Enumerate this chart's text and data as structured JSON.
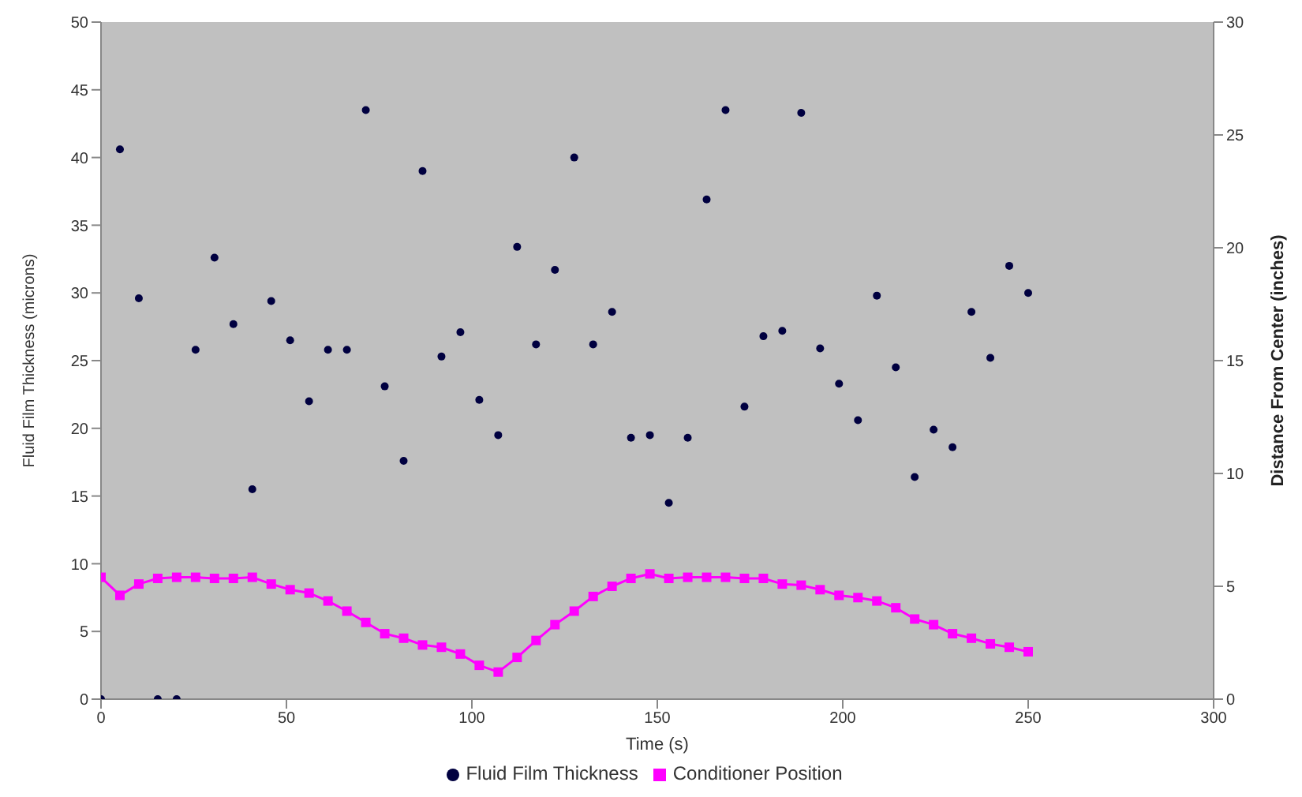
{
  "chart_data": {
    "type": "scatter",
    "xlabel": "Time (s)",
    "ylabel": "Fluid Film Thickness (microns)",
    "y2label": "Distance From Center (inches)",
    "x": [
      0,
      5.1,
      10.2,
      15.3,
      20.4,
      25.5,
      30.6,
      35.7,
      40.8,
      45.9,
      51,
      56.1,
      61.2,
      66.3,
      71.4,
      76.5,
      81.6,
      86.7,
      91.8,
      96.9,
      102,
      107.1,
      112.2,
      117.3,
      122.4,
      127.6,
      132.7,
      137.8,
      142.9,
      148,
      153.1,
      158.2,
      163.3,
      168.4,
      173.5,
      178.6,
      183.7,
      188.8,
      193.9,
      199,
      204.1,
      209.2,
      214.3,
      219.4,
      224.5,
      229.6,
      234.7,
      239.8,
      244.9,
      250
    ],
    "series": [
      {
        "name": "Fluid Film Thickness",
        "marker": "circle",
        "color": "#000040",
        "values": [
          0,
          40.6,
          29.6,
          0,
          0,
          25.8,
          32.6,
          27.7,
          15.5,
          29.4,
          26.5,
          22,
          25.8,
          25.8,
          43.5,
          23.1,
          17.6,
          39,
          25.3,
          27.1,
          22.1,
          19.5,
          33.4,
          26.2,
          31.7,
          40,
          26.2,
          28.6,
          19.3,
          19.5,
          14.5,
          19.3,
          36.9,
          43.5,
          21.6,
          26.8,
          27.2,
          43.3,
          25.9,
          23.3,
          20.6,
          29.8,
          24.5,
          16.4,
          19.9,
          18.6,
          28.6,
          25.2,
          32,
          30
        ]
      },
      {
        "name": "Conditioner Position",
        "type": "line",
        "axis": "y2",
        "marker": "square",
        "color": "#ff00ff",
        "values": [
          5.4,
          4.6,
          5.1,
          5.35,
          5.4,
          5.4,
          5.35,
          5.35,
          5.4,
          5.1,
          4.85,
          4.7,
          4.35,
          3.9,
          3.4,
          2.9,
          2.7,
          2.4,
          2.3,
          2,
          1.5,
          1.2,
          1.85,
          2.6,
          3.3,
          3.9,
          4.55,
          5,
          5.35,
          5.55,
          5.35,
          5.4,
          5.4,
          5.4,
          5.35,
          5.35,
          5.1,
          5.05,
          4.85,
          4.6,
          4.5,
          4.35,
          4.05,
          3.55,
          3.3,
          2.9,
          2.7,
          2.45,
          2.3,
          2.1
        ]
      }
    ],
    "xlim": [
      0,
      300
    ],
    "xticks": [
      0,
      50,
      100,
      150,
      200,
      250,
      300
    ],
    "ylim": [
      0,
      50
    ],
    "yticks": [
      0,
      5,
      10,
      15,
      20,
      25,
      30,
      35,
      40,
      45,
      50
    ],
    "y2lim": [
      0,
      30
    ],
    "y2ticks": [
      0,
      5,
      10,
      15,
      20,
      25,
      30
    ],
    "legend": "bottom"
  }
}
